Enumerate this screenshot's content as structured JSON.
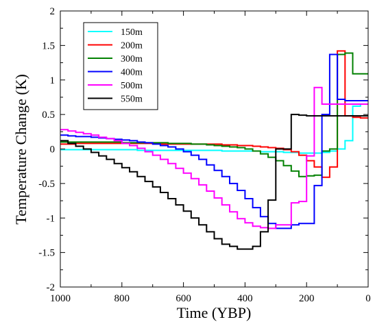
{
  "chart_data": {
    "type": "line",
    "xlabel": "Time (YBP)",
    "ylabel": "Temperature Change (K)",
    "xlim": [
      1000,
      0
    ],
    "ylim": [
      -2,
      2
    ],
    "x_ticks": [
      1000,
      800,
      600,
      400,
      200,
      0
    ],
    "x_tick_labels": [
      "1000",
      "800",
      "600",
      "400",
      "200",
      "0"
    ],
    "y_ticks": [
      -2,
      -1.5,
      -1,
      -0.5,
      0,
      0.5,
      1,
      1.5,
      2
    ],
    "y_tick_labels": [
      "-2",
      "-1.5",
      "-1",
      "-0.5",
      "0",
      "0.5",
      "1",
      "1.5",
      "2"
    ],
    "grid": false,
    "legend_position": "top-left",
    "line_style": "step",
    "bin_width": 25,
    "bin_edges": [
      1000,
      975,
      950,
      925,
      900,
      875,
      850,
      825,
      800,
      775,
      750,
      725,
      700,
      675,
      650,
      625,
      600,
      575,
      550,
      525,
      500,
      475,
      450,
      425,
      400,
      375,
      350,
      325,
      300,
      275,
      250,
      225,
      200,
      175,
      150,
      125,
      100,
      75,
      50,
      25,
      0
    ],
    "series": [
      {
        "name": "150m",
        "color": "#00ffff",
        "values": [
          -0.01,
          -0.01,
          -0.01,
          -0.01,
          -0.01,
          -0.01,
          -0.01,
          -0.01,
          -0.01,
          -0.01,
          -0.02,
          -0.02,
          -0.02,
          -0.02,
          -0.02,
          -0.02,
          -0.02,
          -0.02,
          -0.02,
          -0.02,
          -0.02,
          -0.03,
          -0.03,
          -0.03,
          -0.03,
          -0.03,
          -0.04,
          -0.04,
          -0.04,
          -0.05,
          -0.05,
          -0.06,
          -0.06,
          -0.06,
          -0.05,
          -0.03,
          0.0,
          0.12,
          0.62,
          0.65
        ]
      },
      {
        "name": "200m",
        "color": "#ff0000",
        "values": [
          0.07,
          0.07,
          0.08,
          0.08,
          0.08,
          0.08,
          0.08,
          0.08,
          0.08,
          0.08,
          0.08,
          0.08,
          0.08,
          0.07,
          0.07,
          0.07,
          0.07,
          0.07,
          0.07,
          0.07,
          0.07,
          0.06,
          0.06,
          0.05,
          0.05,
          0.04,
          0.03,
          0.02,
          0.01,
          -0.01,
          -0.04,
          -0.09,
          -0.17,
          -0.26,
          -0.41,
          -0.26,
          1.42,
          0.48,
          0.46,
          0.45
        ]
      },
      {
        "name": "300m",
        "color": "#008000",
        "values": [
          0.1,
          0.1,
          0.1,
          0.1,
          0.1,
          0.1,
          0.1,
          0.1,
          0.09,
          0.09,
          0.09,
          0.09,
          0.09,
          0.09,
          0.08,
          0.08,
          0.08,
          0.07,
          0.07,
          0.06,
          0.05,
          0.04,
          0.03,
          0.02,
          0.0,
          -0.03,
          -0.07,
          -0.12,
          -0.17,
          -0.24,
          -0.32,
          -0.4,
          -0.39,
          -0.38,
          -0.03,
          0.0,
          1.37,
          1.39,
          1.09,
          1.09
        ]
      },
      {
        "name": "400m",
        "color": "#0000ff",
        "values": [
          0.2,
          0.19,
          0.18,
          0.18,
          0.17,
          0.16,
          0.15,
          0.14,
          0.13,
          0.12,
          0.1,
          0.09,
          0.07,
          0.05,
          0.03,
          0.0,
          -0.04,
          -0.09,
          -0.15,
          -0.23,
          -0.31,
          -0.4,
          -0.5,
          -0.6,
          -0.72,
          -0.85,
          -0.98,
          -1.08,
          -1.15,
          -1.15,
          -1.1,
          -1.08,
          -1.08,
          -0.53,
          0.5,
          1.37,
          0.72,
          0.7,
          0.7,
          0.7
        ]
      },
      {
        "name": "500m",
        "color": "#ff00ff",
        "values": [
          0.28,
          0.26,
          0.24,
          0.22,
          0.2,
          0.17,
          0.15,
          0.12,
          0.08,
          0.05,
          0.01,
          -0.04,
          -0.09,
          -0.15,
          -0.21,
          -0.28,
          -0.35,
          -0.43,
          -0.52,
          -0.61,
          -0.71,
          -0.81,
          -0.91,
          -1.01,
          -1.07,
          -1.12,
          -1.14,
          -1.15,
          -1.1,
          -1.1,
          -0.78,
          -0.76,
          -0.1,
          0.89,
          0.65,
          0.65,
          0.65,
          0.65,
          0.65,
          0.65
        ]
      },
      {
        "name": "550m",
        "color": "#000000",
        "values": [
          0.12,
          0.08,
          0.04,
          0.0,
          -0.05,
          -0.1,
          -0.15,
          -0.21,
          -0.27,
          -0.33,
          -0.4,
          -0.47,
          -0.55,
          -0.63,
          -0.72,
          -0.81,
          -0.9,
          -1.0,
          -1.1,
          -1.2,
          -1.3,
          -1.38,
          -1.41,
          -1.45,
          -1.45,
          -1.41,
          -1.2,
          -0.74,
          0.0,
          0.0,
          0.5,
          0.49,
          0.48,
          0.48,
          0.48,
          0.48,
          0.48,
          0.48,
          0.48,
          0.48
        ]
      }
    ]
  }
}
